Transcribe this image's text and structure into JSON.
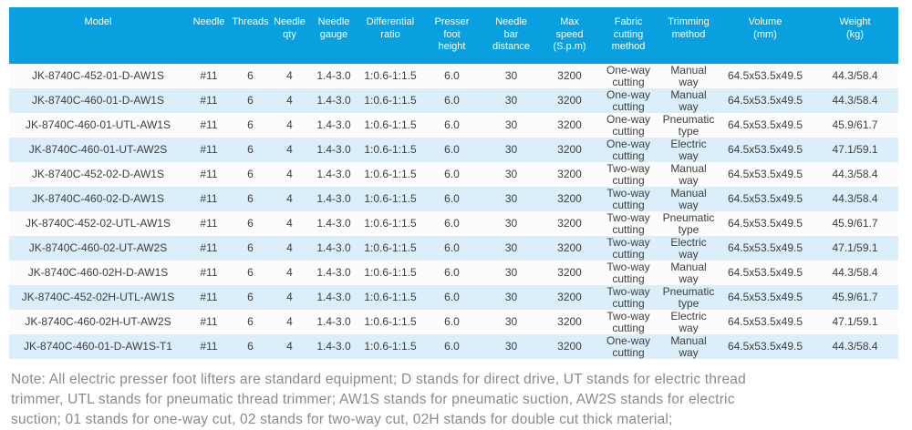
{
  "colors": {
    "header_bg": "#0aa0e0",
    "row_bg": "#fcfcfd",
    "row_alt_bg": "#dbeffa",
    "body_text": "#3d3d3d",
    "header_text": "#ffffff",
    "note_text": "#8a8a8a"
  },
  "table": {
    "column_keys": [
      "model",
      "needle",
      "threads",
      "needle_qty",
      "needle_gauge",
      "differential_ratio",
      "presser_foot_height",
      "needle_bar_distance",
      "max_speed",
      "fabric_cutting_method",
      "trimming_method",
      "volume",
      "weight"
    ],
    "headers": {
      "model": "Model",
      "needle": "Needle",
      "threads": "Threads",
      "needle_qty": "Needle\nqty",
      "needle_gauge": "Needle\ngauge",
      "differential_ratio": "Differential\nratio",
      "presser_foot_height": "Presser\nfoot\nheight",
      "needle_bar_distance": "Needle\nbar\ndistance",
      "max_speed": "Max\nspeed\n(S.p.m)",
      "fabric_cutting_method": "Fabric\ncutting\nmethod",
      "trimming_method": "Trimming\nmethod",
      "volume": "Volume\n(mm)",
      "weight": "Weight\n(kg)"
    },
    "rows": [
      {
        "model": "JK-8740C-452-01-D-AW1S",
        "needle": "#11",
        "threads": "6",
        "needle_qty": "4",
        "needle_gauge": "1.4-3.0",
        "differential_ratio": "1:0.6-1:1.5",
        "presser_foot_height": "6.0",
        "needle_bar_distance": "30",
        "max_speed": "3200",
        "fabric_cutting_method": "One-way\ncutting",
        "trimming_method": "Manual\nway",
        "volume": "64.5x53.5x49.5",
        "weight": "44.3/58.4"
      },
      {
        "model": "JK-8740C-460-01-D-AW1S",
        "needle": "#11",
        "threads": "6",
        "needle_qty": "4",
        "needle_gauge": "1.4-3.0",
        "differential_ratio": "1:0.6-1:1.5",
        "presser_foot_height": "6.0",
        "needle_bar_distance": "30",
        "max_speed": "3200",
        "fabric_cutting_method": "One-way\ncutting",
        "trimming_method": "Manual\nway",
        "volume": "64.5x53.5x49.5",
        "weight": "44.3/58.4"
      },
      {
        "model": "JK-8740C-460-01-UTL-AW1S",
        "needle": "#11",
        "threads": "6",
        "needle_qty": "4",
        "needle_gauge": "1.4-3.0",
        "differential_ratio": "1:0.6-1:1.5",
        "presser_foot_height": "6.0",
        "needle_bar_distance": "30",
        "max_speed": "3200",
        "fabric_cutting_method": "One-way\ncutting",
        "trimming_method": "Pneumatic\ntype",
        "volume": "64.5x53.5x49.5",
        "weight": "45.9/61.7"
      },
      {
        "model": "JK-8740C-460-01-UT-AW2S",
        "needle": "#11",
        "threads": "6",
        "needle_qty": "4",
        "needle_gauge": "1.4-3.0",
        "differential_ratio": "1:0.6-1:1.5",
        "presser_foot_height": "6.0",
        "needle_bar_distance": "30",
        "max_speed": "3200",
        "fabric_cutting_method": "One-way\ncutting",
        "trimming_method": "Electric\nway",
        "volume": "64.5x53.5x49.5",
        "weight": "47.1/59.1"
      },
      {
        "model": "JK-8740C-452-02-D-AW1S",
        "needle": "#11",
        "threads": "6",
        "needle_qty": "4",
        "needle_gauge": "1.4-3.0",
        "differential_ratio": "1:0.6-1:1.5",
        "presser_foot_height": "6.0",
        "needle_bar_distance": "30",
        "max_speed": "3200",
        "fabric_cutting_method": "Two-way\ncutting",
        "trimming_method": "Manual\nway",
        "volume": "64.5x53.5x49.5",
        "weight": "44.3/58.4"
      },
      {
        "model": "JK-8740C-460-02-D-AW1S",
        "needle": "#11",
        "threads": "6",
        "needle_qty": "4",
        "needle_gauge": "1.4-3.0",
        "differential_ratio": "1:0.6-1:1.5",
        "presser_foot_height": "6.0",
        "needle_bar_distance": "30",
        "max_speed": "3200",
        "fabric_cutting_method": "Two-way\ncutting",
        "trimming_method": "Manual\nway",
        "volume": "64.5x53.5x49.5",
        "weight": "44.3/58.4"
      },
      {
        "model": "JK-8740C-452-02-UTL-AW1S",
        "needle": "#11",
        "threads": "6",
        "needle_qty": "4",
        "needle_gauge": "1.4-3.0",
        "differential_ratio": "1:0.6-1:1.5",
        "presser_foot_height": "6.0",
        "needle_bar_distance": "30",
        "max_speed": "3200",
        "fabric_cutting_method": "Two-way\ncutting",
        "trimming_method": "Pneumatic\ntype",
        "volume": "64.5x53.5x49.5",
        "weight": "45.9/61.7"
      },
      {
        "model": "JK-8740C-460-02-UT-AW2S",
        "needle": "#11",
        "threads": "6",
        "needle_qty": "4",
        "needle_gauge": "1.4-3.0",
        "differential_ratio": "1:0.6-1:1.5",
        "presser_foot_height": "6.0",
        "needle_bar_distance": "30",
        "max_speed": "3200",
        "fabric_cutting_method": "Two-way\ncutting",
        "trimming_method": "Electric\nway",
        "volume": "64.5x53.5x49.5",
        "weight": "47.1/59.1"
      },
      {
        "model": "JK-8740C-460-02H-D-AW1S",
        "needle": "#11",
        "threads": "6",
        "needle_qty": "4",
        "needle_gauge": "1.4-3.0",
        "differential_ratio": "1:0.6-1:1.5",
        "presser_foot_height": "6.0",
        "needle_bar_distance": "30",
        "max_speed": "3200",
        "fabric_cutting_method": "Two-way\ncutting",
        "trimming_method": "Manual\nway",
        "volume": "64.5x53.5x49.5",
        "weight": "44.3/58.4"
      },
      {
        "model": "JK-8740C-452-02H-UTL-AW1S",
        "needle": "#11",
        "threads": "6",
        "needle_qty": "4",
        "needle_gauge": "1.4-3.0",
        "differential_ratio": "1:0.6-1:1.5",
        "presser_foot_height": "6.0",
        "needle_bar_distance": "30",
        "max_speed": "3200",
        "fabric_cutting_method": "Two-way\ncutting",
        "trimming_method": "Pneumatic\ntype",
        "volume": "64.5x53.5x49.5",
        "weight": "45.9/61.7"
      },
      {
        "model": "JK-8740C-460-02H-UT-AW2S",
        "needle": "#11",
        "threads": "6",
        "needle_qty": "4",
        "needle_gauge": "1.4-3.0",
        "differential_ratio": "1:0.6-1:1.5",
        "presser_foot_height": "6.0",
        "needle_bar_distance": "30",
        "max_speed": "3200",
        "fabric_cutting_method": "Two-way\ncutting",
        "trimming_method": "Electric\nway",
        "volume": "64.5x53.5x49.5",
        "weight": "47.1/59.1"
      },
      {
        "model": "JK-8740C-460-01-D-AW1S-T1",
        "needle": "#11",
        "threads": "6",
        "needle_qty": "4",
        "needle_gauge": "1.4-3.0",
        "differential_ratio": "1:0.6-1:1.5",
        "presser_foot_height": "6.0",
        "needle_bar_distance": "30",
        "max_speed": "3200",
        "fabric_cutting_method": "One-way\ncutting",
        "trimming_method": "Manual\nway",
        "volume": "64.5x53.5x49.5",
        "weight": "44.3/58.4"
      }
    ]
  },
  "note": {
    "lines": [
      "Note: All electric presser foot lifters are standard equipment; D stands for direct drive, UT stands for electric thread",
      "trimmer, UTL stands for pneumatic thread trimmer; AW1S stands for pneumatic suction, AW2S stands for electric",
      "suction; 01 stands for one-way cut, 02 stands for two-way cut, 02H stands for double cut thick material;"
    ]
  }
}
